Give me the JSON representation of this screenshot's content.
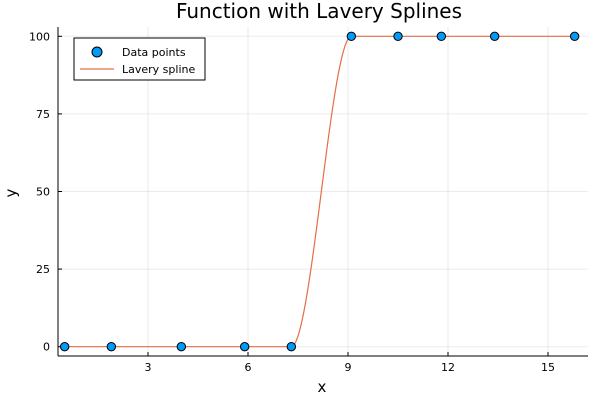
{
  "chart_data": {
    "type": "line",
    "title": "Function with Lavery Splines",
    "xlabel": "x",
    "ylabel": "y",
    "xlim": [
      0.3,
      16.2
    ],
    "ylim": [
      -3,
      103
    ],
    "xticks": [
      3,
      6,
      9,
      12,
      15
    ],
    "yticks": [
      0,
      25,
      50,
      75,
      100
    ],
    "grid": true,
    "legend_position": "top-left",
    "series": [
      {
        "name": "Data points",
        "kind": "scatter",
        "color": "#009AFA",
        "x": [
          0.5,
          1.9,
          4.0,
          5.9,
          7.3,
          9.1,
          10.5,
          11.8,
          13.4,
          15.8
        ],
        "y": [
          0,
          0,
          0,
          0,
          0,
          100,
          100,
          100,
          100,
          100
        ]
      },
      {
        "name": "Lavery spline",
        "kind": "line",
        "color": "#E26F46",
        "x": [
          0.5,
          1.9,
          4.0,
          5.9,
          7.3,
          9.1,
          10.5,
          11.8,
          13.4,
          15.8
        ],
        "y": [
          0,
          0,
          0,
          0,
          0,
          100,
          100,
          100,
          100,
          100
        ]
      }
    ]
  }
}
